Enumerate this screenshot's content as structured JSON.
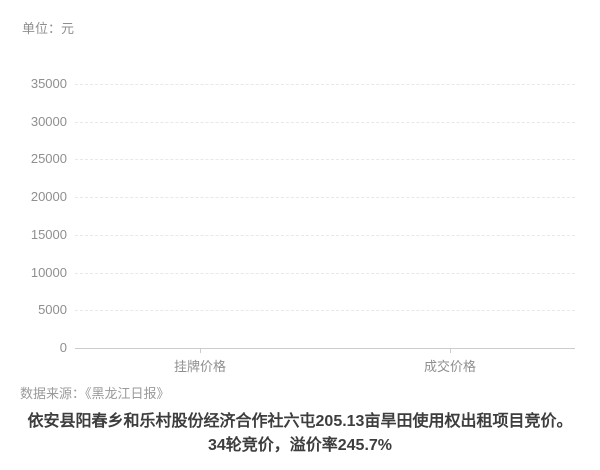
{
  "unit_label": "单位：元",
  "source_label": "数据来源：《黑龙江日报》",
  "title": {
    "line1": "依安县阳春乡和乐村股份经济合作社六屯205.13亩旱田使用权出租项目竞价。",
    "line2": "34轮竞价，溢价率245.7%"
  },
  "chart_data": {
    "type": "bar",
    "title": "依安县阳春乡和乐村股份经济合作社六屯205.13亩旱田使用权出租项目竞价。34轮竞价，溢价率245.7%",
    "unit": "元",
    "categories": [
      "挂牌价格",
      "成交价格"
    ],
    "values": [
      0,
      0
    ],
    "bars_visible": false,
    "note": "chart area is rendered empty - no visible bar heights shown",
    "ylim": [
      0,
      35000
    ],
    "yticks": [
      0,
      5000,
      10000,
      15000,
      20000,
      25000,
      30000,
      35000
    ],
    "xlabel": "",
    "ylabel": "单位：元",
    "grid": "horizontal dashed",
    "legend_position": "none",
    "source": "数据来源：《黑龙江日报》"
  },
  "colors": {
    "background": "#ffffff",
    "axis_text": "#8f8f8f",
    "gridline": "#e8e8e8",
    "axis_line": "#cccccc",
    "bar_fill": "#d4d4d4",
    "source_text": "#9a9a9a",
    "title_text": "#3d3d3d"
  }
}
